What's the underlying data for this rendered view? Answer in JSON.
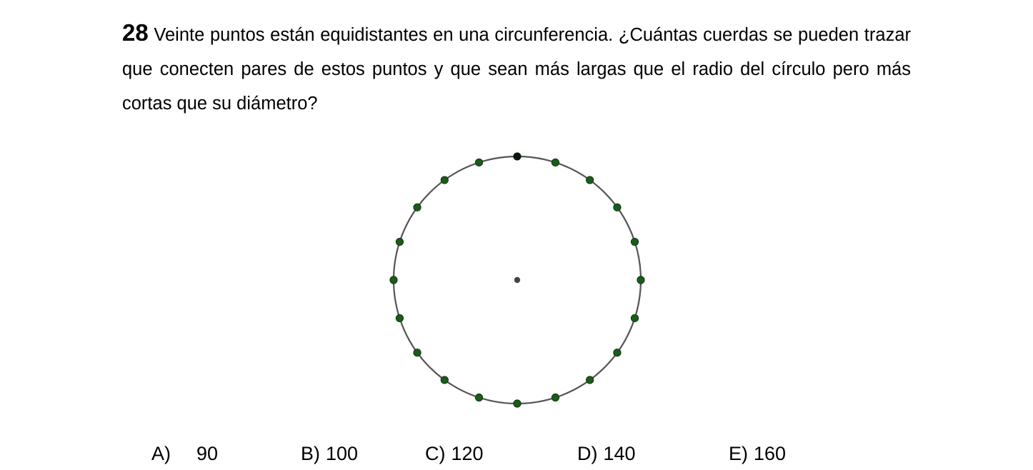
{
  "problem": {
    "number": "28",
    "text": "Veinte puntos están equidistantes en una circunferencia. ¿Cuántas cuerdas se pueden trazar que conecten pares de estos puntos y que sean más largas que el radio del círculo pero más cortas que su diámetro?"
  },
  "figure": {
    "point_count": 20,
    "circle_color": "#555555",
    "point_color": "#1a5c1a",
    "top_point_color": "#111111",
    "center_color": "#444444"
  },
  "answers": [
    {
      "letter": "A)",
      "value": "90"
    },
    {
      "letter": "B)",
      "value": "100"
    },
    {
      "letter": "C)",
      "value": "120"
    },
    {
      "letter": "D)",
      "value": "140"
    },
    {
      "letter": "E)",
      "value": "160"
    }
  ]
}
